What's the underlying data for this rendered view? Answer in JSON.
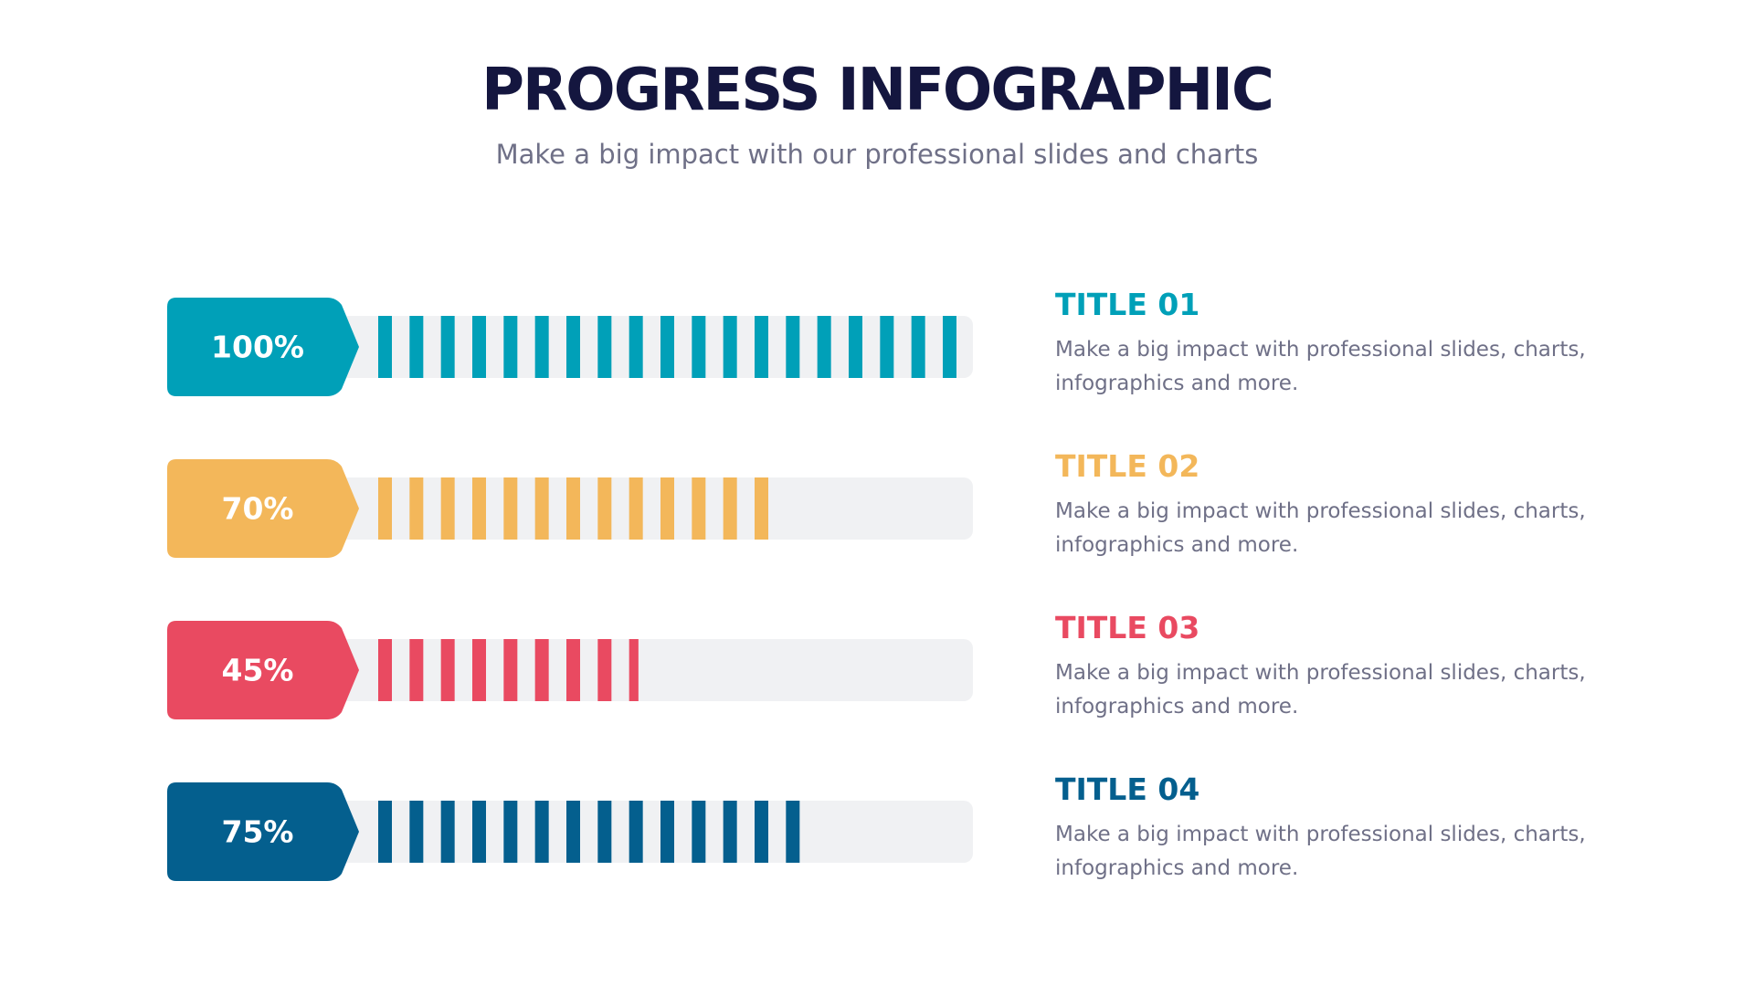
{
  "chart_data": {
    "type": "progress",
    "title": "PROGRESS INFOGRAPHIC",
    "subtitle": "Make a big impact with our professional slides and charts",
    "categories": [
      "TITLE 01",
      "TITLE 02",
      "TITLE 03",
      "TITLE 04"
    ],
    "values": [
      100,
      70,
      45,
      75
    ],
    "value_labels": [
      "100%",
      "70%",
      "45%",
      "75%"
    ],
    "colors": [
      "#00a0b8",
      "#f3b75a",
      "#e94a61",
      "#045f8e"
    ],
    "descriptions": [
      "Make a big impact with professional slides, charts, infographics and more.",
      "Make a big impact with professional slides, charts, infographics and more.",
      "Make a big impact with professional slides, charts, infographics and more.",
      "Make a big impact with professional slides, charts, infographics and more."
    ],
    "xlim": [
      0,
      100
    ]
  }
}
